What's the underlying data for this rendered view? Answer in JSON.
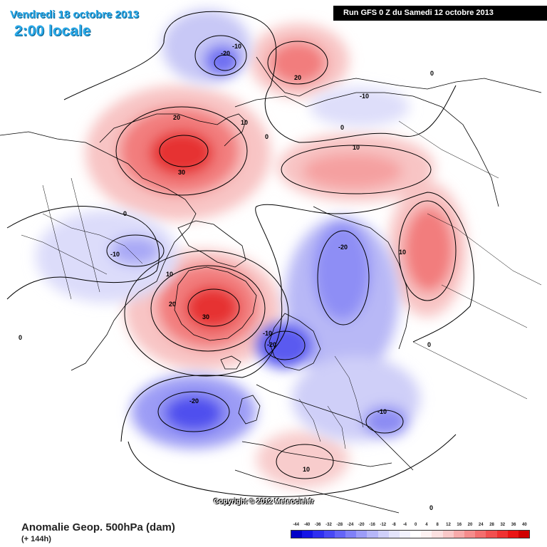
{
  "header": {
    "date": "Vendredi 18 octobre 2013",
    "local_time": "2:00 locale",
    "run_info": "Run GFS 0 Z du Samedi 12 octobre 2013"
  },
  "footer": {
    "copyright": "Copyright © 2012 Meteociel.fr",
    "product_title": "Anomalie Geop. 500hPa (dam)",
    "lead_time": "(+ 144h)"
  },
  "legend": {
    "labels": [
      "-44",
      "-40",
      "-36",
      "-32",
      "-28",
      "-24",
      "-20",
      "-16",
      "-12",
      "-8",
      "-4",
      "0",
      "4",
      "8",
      "12",
      "16",
      "20",
      "24",
      "28",
      "32",
      "36",
      "40"
    ],
    "colors": [
      "#0000c8",
      "#1414e6",
      "#2e2ef0",
      "#4848f5",
      "#6464f8",
      "#8080f8",
      "#9c9cf8",
      "#b6b6f8",
      "#cfcff9",
      "#e4e4fb",
      "#f2f2fd",
      "#ffffff",
      "#fdf2f2",
      "#fbe0e0",
      "#f9c8c8",
      "#f7aaaa",
      "#f58c8c",
      "#f36e6e",
      "#f15050",
      "#ef3232",
      "#ea1414",
      "#d00000"
    ]
  },
  "map": {
    "colors": {
      "ocean": "#ffffff",
      "coast": "#000000",
      "border": "#000000",
      "contour": "#000000"
    },
    "anomaly_labels": [
      {
        "id": "contour-label-kamchatka-neg10",
        "text": "-10"
      },
      {
        "id": "contour-label-kamchatka-neg20",
        "text": "-20"
      },
      {
        "id": "contour-label-okhotsk-20",
        "text": "20"
      },
      {
        "id": "contour-label-alaska-20",
        "text": "20"
      },
      {
        "id": "contour-label-alaska-30",
        "text": "30"
      },
      {
        "id": "contour-label-bering-10",
        "text": "10"
      },
      {
        "id": "contour-label-pacific-0",
        "text": "0"
      },
      {
        "id": "contour-label-siberia-neg10",
        "text": "-10"
      },
      {
        "id": "contour-label-siberia-0",
        "text": "0"
      },
      {
        "id": "contour-label-siberia-10",
        "text": "10"
      },
      {
        "id": "contour-label-siberia-0b",
        "text": "0"
      },
      {
        "id": "contour-label-canada-0",
        "text": "0"
      },
      {
        "id": "contour-label-canada-neg10",
        "text": "-10"
      },
      {
        "id": "contour-label-hudson-10",
        "text": "10"
      },
      {
        "id": "contour-label-greenland-20",
        "text": "20"
      },
      {
        "id": "contour-label-greenland-30",
        "text": "30"
      },
      {
        "id": "contour-label-arctic-neg20",
        "text": "-20"
      },
      {
        "id": "contour-label-urals-10",
        "text": "10"
      },
      {
        "id": "contour-label-atlantic-0",
        "text": "0"
      },
      {
        "id": "contour-label-scandinavia-neg10",
        "text": "-10"
      },
      {
        "id": "contour-label-scandinavia-neg20",
        "text": "-20"
      },
      {
        "id": "contour-label-atlantic-neg20",
        "text": "-20"
      },
      {
        "id": "contour-label-balkans-neg10",
        "text": "-10"
      },
      {
        "id": "contour-label-africa-10",
        "text": "10"
      },
      {
        "id": "contour-label-east-0",
        "text": "0"
      },
      {
        "id": "contour-label-east-0b",
        "text": "0"
      }
    ]
  }
}
